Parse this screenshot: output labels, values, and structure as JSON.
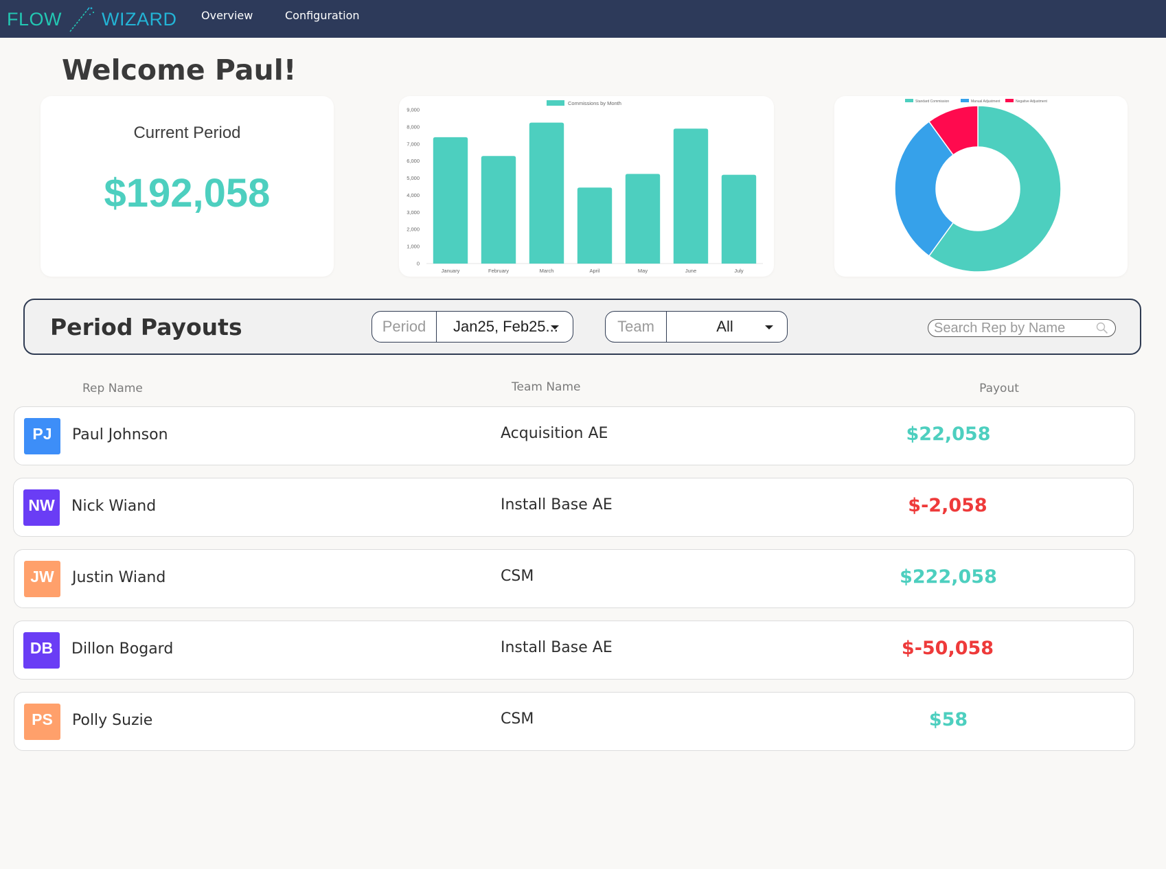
{
  "app": {
    "logo_left": "FLOW",
    "logo_right": "WIZARD",
    "colors": {
      "header_bg": "#2d3a5a",
      "accent_teal": "#4dcfbf",
      "negative_red": "#ee3a3a"
    }
  },
  "nav": {
    "items": [
      {
        "label": "Overview"
      },
      {
        "label": "Configuration"
      }
    ]
  },
  "welcome": "Welcome Paul!",
  "current_period": {
    "label": "Current Period",
    "value": "$192,058"
  },
  "chart_data": [
    {
      "type": "bar",
      "title": "",
      "legend": [
        "Commissions by Month"
      ],
      "legend_position": "top",
      "categories": [
        "January",
        "February",
        "March",
        "April",
        "May",
        "June",
        "July"
      ],
      "series": [
        {
          "name": "Commissions by Month",
          "values": [
            7400,
            6300,
            8250,
            4450,
            5250,
            7900,
            5200
          ],
          "color": "#4dcfbf"
        }
      ],
      "ylim": [
        0,
        9000
      ],
      "yticks": [
        "0",
        "1,000",
        "2,000",
        "3,000",
        "4,000",
        "5,000",
        "6,000",
        "7,000",
        "8,000",
        "9,000"
      ],
      "ytick_values": [
        0,
        1000,
        2000,
        3000,
        4000,
        5000,
        6000,
        7000,
        8000,
        9000
      ],
      "grid": false
    },
    {
      "type": "pie",
      "variant": "doughnut",
      "legend_position": "top",
      "labels": [
        "Standard Commission",
        "Manual Adjustment",
        "Negative Adjustment"
      ],
      "values": [
        60,
        30,
        10
      ],
      "colors": [
        "#4dcfbf",
        "#36a1ea",
        "#ff0a4e"
      ]
    }
  ],
  "payouts": {
    "title": "Period Payouts",
    "period_filter": {
      "label": "Period",
      "value": "Jan25, Feb25..."
    },
    "team_filter": {
      "label": "Team",
      "value": "All"
    },
    "search": {
      "placeholder": "Search Rep by Name"
    },
    "columns": {
      "rep": "Rep Name",
      "team": "Team Name",
      "payout": "Payout"
    },
    "rows": [
      {
        "initials": "PJ",
        "name": "Paul Johnson",
        "team": "Acquisition AE",
        "payout": "$22,058",
        "avatar_color": "#3d8ef8",
        "payout_color": "#4dcfbf"
      },
      {
        "initials": "NW",
        "name": "Nick Wiand",
        "team": "Install Base AE",
        "payout": "$-2,058",
        "avatar_color": "#6a3df5",
        "payout_color": "#ee3a3a"
      },
      {
        "initials": "JW",
        "name": "Justin Wiand",
        "team": "CSM",
        "payout": "$222,058",
        "avatar_color": "#ffa06b",
        "payout_color": "#4dcfbf"
      },
      {
        "initials": "DB",
        "name": "Dillon Bogard",
        "team": "Install Base AE",
        "payout": "$-50,058",
        "avatar_color": "#6a3df5",
        "payout_color": "#ee3a3a"
      },
      {
        "initials": "PS",
        "name": "Polly Suzie",
        "team": "CSM",
        "payout": "$58",
        "avatar_color": "#ffa06b",
        "payout_color": "#4dcfbf"
      }
    ]
  }
}
